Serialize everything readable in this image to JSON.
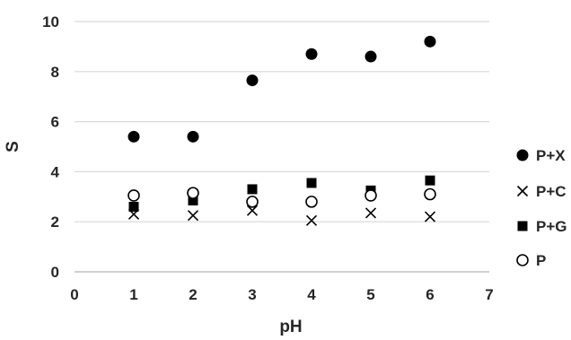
{
  "chart_data": {
    "type": "scatter",
    "title": "",
    "xlabel": "pH",
    "ylabel": "S",
    "xlim": [
      0,
      7
    ],
    "ylim": [
      0,
      10
    ],
    "x_ticks": [
      "0",
      "1",
      "2",
      "3",
      "4",
      "5",
      "6",
      "7"
    ],
    "y_ticks": [
      "0",
      "2",
      "4",
      "6",
      "8",
      "10"
    ],
    "grid": "horizontal",
    "legend_position": "right",
    "series": [
      {
        "name": "P+X",
        "marker": "filled-circle",
        "color": "#000000",
        "x": [
          1,
          2,
          3,
          4,
          5,
          6
        ],
        "y": [
          5.4,
          5.4,
          7.65,
          8.7,
          8.6,
          9.2
        ]
      },
      {
        "name": "P+C",
        "marker": "x",
        "color": "#000000",
        "x": [
          1,
          2,
          3,
          4,
          5,
          6
        ],
        "y": [
          2.3,
          2.25,
          2.45,
          2.05,
          2.35,
          2.2
        ]
      },
      {
        "name": "P+G",
        "marker": "filled-square",
        "color": "#000000",
        "x": [
          1,
          2,
          3,
          4,
          5,
          6
        ],
        "y": [
          2.6,
          2.85,
          3.3,
          3.55,
          3.25,
          3.65
        ]
      },
      {
        "name": "P",
        "marker": "open-circle",
        "color": "#000000",
        "x": [
          1,
          2,
          3,
          4,
          5,
          6
        ],
        "y": [
          3.05,
          3.15,
          2.8,
          2.8,
          3.05,
          3.1
        ]
      }
    ]
  }
}
